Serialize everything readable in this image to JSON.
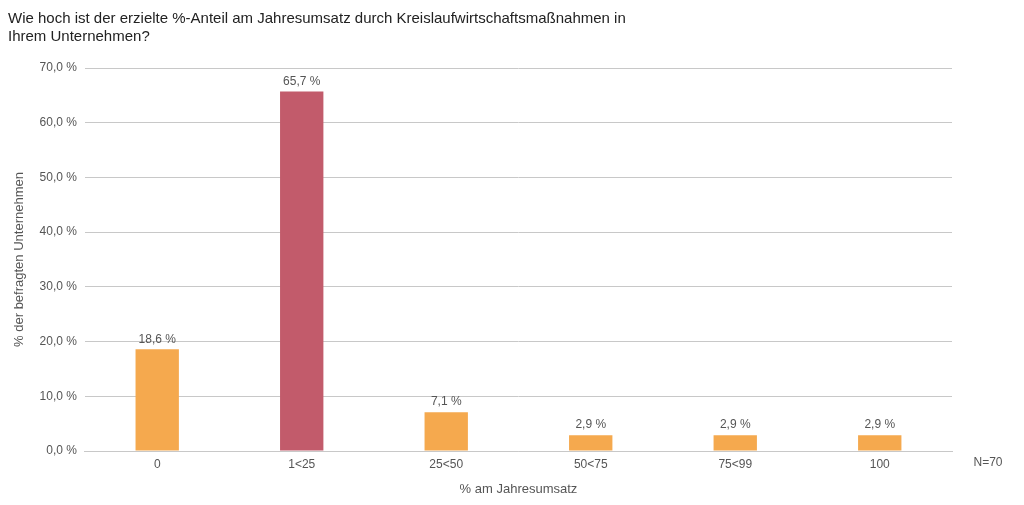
{
  "chart_data": {
    "type": "bar",
    "title": "Wie hoch ist der erzielte %-Anteil am Jahresumsatz durch Kreislaufwirtschaftsmaßnahmen in\nIhrem Unternehmen?",
    "categories": [
      "0",
      "1<25",
      "25<50",
      "50<75",
      "75<99",
      "100"
    ],
    "values": [
      18.6,
      65.7,
      7.1,
      2.9,
      2.9,
      2.9
    ],
    "value_labels": [
      "18,6 %",
      "65,7 %",
      "7,1 %",
      "2,9 %",
      "2,9 %",
      "2,9 %"
    ],
    "colors": [
      "#F5A94E",
      "#C25B6B",
      "#F5A94E",
      "#F5A94E",
      "#F5A94E",
      "#F5A94E"
    ],
    "data_labels": true,
    "xlabel": "% am Jahresumsatz",
    "ylabel": "% der befragten Unternehmen",
    "ylim": [
      0,
      70
    ],
    "yticks": [
      {
        "value": 0,
        "label": "0,0 %"
      },
      {
        "value": 10,
        "label": "10,0 %"
      },
      {
        "value": 20,
        "label": "20,0 %"
      },
      {
        "value": 30,
        "label": "30,0 %"
      },
      {
        "value": 40,
        "label": "40,0 %"
      },
      {
        "value": 50,
        "label": "50,0 %"
      },
      {
        "value": 60,
        "label": "60,0 %"
      },
      {
        "value": 70,
        "label": "70,0 %"
      }
    ],
    "grid": true,
    "annotation": "N=70"
  }
}
